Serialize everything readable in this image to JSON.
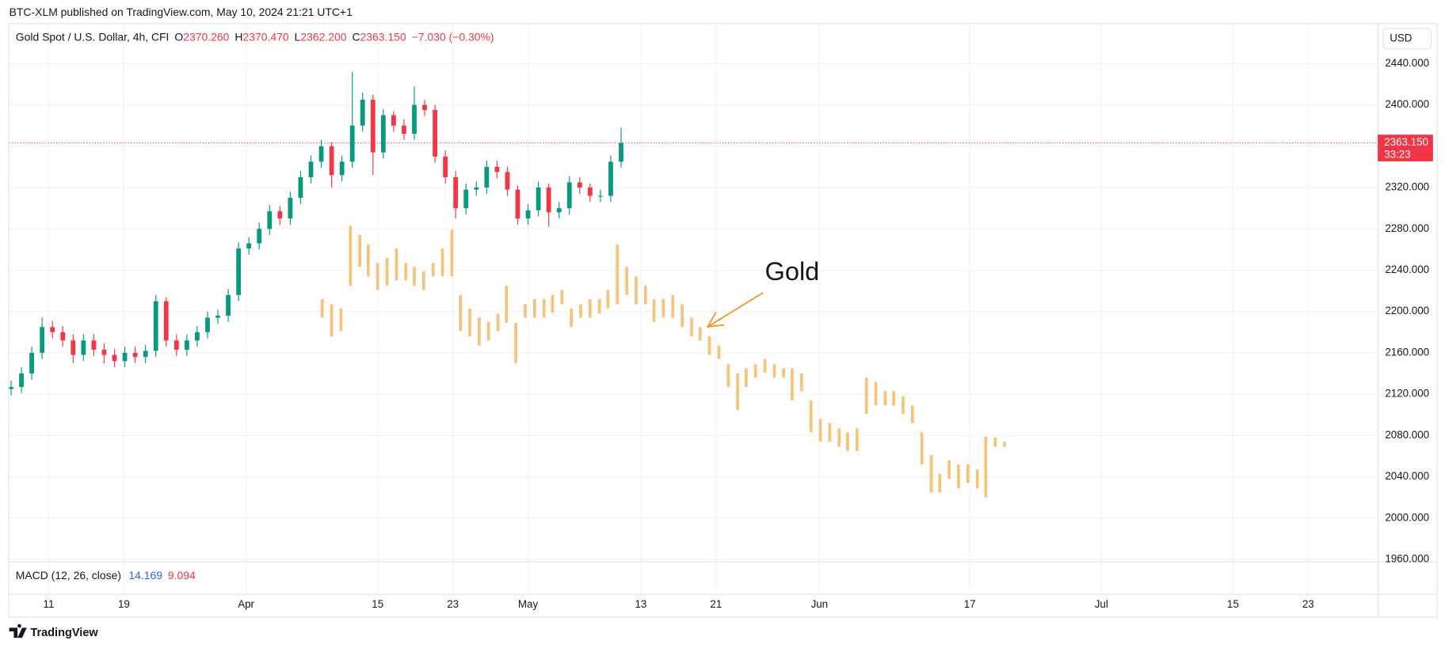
{
  "header": "BTC-XLM published on TradingView.com, May 10, 2024 21:21 UTC+1",
  "legend": {
    "title": "Gold Spot / U.S. Dollar, 4h, CFI",
    "fields": [
      {
        "key": "O",
        "value": "2370.260"
      },
      {
        "key": "H",
        "value": "2370.470"
      },
      {
        "key": "L",
        "value": "2362.200"
      },
      {
        "key": "C",
        "value": "2363.150"
      }
    ],
    "change": "−7.030 (−0.30%)"
  },
  "currency": "USD",
  "indicator": {
    "name": "MACD (12, 26, close)",
    "macd": "14.169",
    "signal": "9.094"
  },
  "footer": "TradingView",
  "chart_data": {
    "type": "candlestick",
    "xlim": [
      6.8,
      152.4
    ],
    "xticks": [
      11,
      19,
      {
        "value": 32,
        "label": "Apr"
      },
      {
        "value": 46,
        "label": "15"
      },
      {
        "value": 54,
        "label": "23"
      },
      {
        "value": 62,
        "label": "May"
      },
      {
        "value": 74,
        "label": "13"
      },
      {
        "value": 82,
        "label": "21"
      },
      {
        "value": 93,
        "label": "Jun"
      },
      {
        "value": 109,
        "label": "17"
      },
      {
        "value": 123,
        "label": "Jul"
      },
      {
        "value": 137,
        "label": "15"
      },
      {
        "value": 145,
        "label": "23"
      }
    ],
    "ylim": [
      1958.1,
      2479.2
    ],
    "yticks": [
      {
        "value": 1960,
        "label": "1960.000"
      },
      {
        "value": 2000,
        "label": "2000.000"
      },
      {
        "value": 2040,
        "label": "2040.000"
      },
      {
        "value": 2080,
        "label": "2080.000"
      },
      {
        "value": 2120,
        "label": "2120.000"
      },
      {
        "value": 2160,
        "label": "2160.000"
      },
      {
        "value": 2200,
        "label": "2200.000"
      },
      {
        "value": 2240,
        "label": "2240.000"
      },
      {
        "value": 2280,
        "label": "2280.000"
      },
      {
        "value": 2320,
        "label": "2320.000"
      },
      {
        "value": 2360,
        "label": "2360.000"
      },
      {
        "value": 2400,
        "label": "2400.000"
      },
      {
        "value": 2440,
        "label": "2440.000"
      }
    ],
    "grid": true,
    "last_price": {
      "value": 2363.15,
      "label": "2363.150",
      "countdown": "33:23",
      "color": "#f23645"
    },
    "series": [
      {
        "up_color": "#089981",
        "down_color": "#f23645",
        "x": [
          7.0,
          8.1,
          9.2,
          10.3,
          11.4,
          12.5,
          13.6,
          14.7,
          15.8,
          16.9,
          18.0,
          19.1,
          20.2,
          21.3,
          22.4,
          23.5,
          24.6,
          25.7,
          26.8,
          27.9,
          29.0,
          30.1,
          31.2,
          32.3,
          33.4,
          34.5,
          35.6,
          36.7,
          37.8,
          38.9,
          40.0,
          41.1,
          42.2,
          43.3,
          44.4,
          45.5,
          46.6,
          47.7,
          48.8,
          49.9,
          51.0,
          52.1,
          53.2,
          54.3,
          55.4,
          56.5,
          57.6,
          58.7,
          59.8,
          60.9,
          62.0,
          63.1,
          64.2,
          65.3,
          66.4,
          67.5,
          68.6,
          69.7,
          70.8,
          71.9
        ],
        "open": [
          2125,
          2127,
          2140,
          2160,
          2185,
          2180,
          2172,
          2158,
          2172,
          2163,
          2158,
          2152,
          2160,
          2156,
          2162,
          2210,
          2172,
          2163,
          2172,
          2180,
          2194,
          2196,
          2216,
          2261,
          2266,
          2280,
          2297,
          2290,
          2310,
          2330,
          2345,
          2360,
          2332,
          2345,
          2380,
          2405,
          2354,
          2390,
          2380,
          2372,
          2400,
          2395,
          2350,
          2330,
          2300,
          2318,
          2320,
          2340,
          2335,
          2318,
          2290,
          2298,
          2320,
          2296,
          2300,
          2325,
          2320,
          2312,
          2312,
          2345
        ],
        "high": [
          2133,
          2146,
          2166,
          2194,
          2191,
          2186,
          2178,
          2178,
          2178,
          2169,
          2164,
          2166,
          2166,
          2168,
          2216,
          2214,
          2178,
          2178,
          2186,
          2200,
          2202,
          2222,
          2267,
          2272,
          2286,
          2303,
          2302,
          2316,
          2336,
          2351,
          2366,
          2364,
          2351,
          2432,
          2412,
          2410,
          2396,
          2394,
          2386,
          2418,
          2405,
          2400,
          2356,
          2336,
          2324,
          2326,
          2346,
          2346,
          2340,
          2322,
          2304,
          2326,
          2324,
          2306,
          2331,
          2330,
          2324,
          2318,
          2351,
          2378
        ],
        "low": [
          2119,
          2121,
          2134,
          2154,
          2174,
          2166,
          2150,
          2152,
          2157,
          2150,
          2146,
          2146,
          2150,
          2150,
          2156,
          2166,
          2157,
          2157,
          2166,
          2174,
          2188,
          2190,
          2210,
          2255,
          2260,
          2274,
          2284,
          2284,
          2304,
          2324,
          2339,
          2320,
          2326,
          2339,
          2374,
          2332,
          2348,
          2374,
          2366,
          2366,
          2389,
          2344,
          2324,
          2290,
          2294,
          2312,
          2314,
          2329,
          2312,
          2284,
          2284,
          2292,
          2282,
          2290,
          2294,
          2314,
          2306,
          2306,
          2306,
          2339
        ],
        "close": [
          2127,
          2140,
          2160,
          2185,
          2180,
          2172,
          2158,
          2172,
          2163,
          2158,
          2152,
          2160,
          2156,
          2162,
          2210,
          2172,
          2163,
          2172,
          2180,
          2194,
          2196,
          2216,
          2261,
          2266,
          2280,
          2297,
          2290,
          2310,
          2330,
          2345,
          2360,
          2332,
          2345,
          2380,
          2405,
          2354,
          2390,
          2380,
          2372,
          2400,
          2395,
          2350,
          2330,
          2300,
          2318,
          2320,
          2340,
          2335,
          2318,
          2290,
          2298,
          2320,
          2296,
          2300,
          2325,
          2320,
          2312,
          2312,
          2345,
          2363.15
        ]
      },
      {
        "name": "Gold",
        "color": "#f9c27a",
        "label_color": "#f7931a",
        "x": [
          40.1,
          41.1,
          42.1,
          43.1,
          44.1,
          45.0,
          46.0,
          47.0,
          48.0,
          49.0,
          49.9,
          50.9,
          51.9,
          52.9,
          53.9,
          54.8,
          55.8,
          56.8,
          57.8,
          58.8,
          59.7,
          60.7,
          61.7,
          62.7,
          63.7,
          64.6,
          65.6,
          66.6,
          67.6,
          68.6,
          69.6,
          70.5,
          71.5,
          72.5,
          73.5,
          74.5,
          75.4,
          76.4,
          77.4,
          78.4,
          79.4,
          80.3,
          81.3,
          82.3,
          83.3,
          84.3,
          85.2,
          86.2,
          87.2,
          88.2,
          89.2,
          90.1,
          91.1,
          92.1,
          93.1,
          94.1,
          95.1,
          96.0,
          97.0,
          98.0,
          99.0,
          100.0,
          100.9,
          101.9,
          102.9,
          103.9,
          104.9,
          105.8,
          106.8,
          107.8,
          108.8,
          109.8,
          110.7,
          111.7,
          112.7
        ],
        "high": [
          2212,
          2207,
          2203,
          2283,
          2274,
          2265,
          2247,
          2252,
          2261,
          2247,
          2243,
          2239,
          2247,
          2261,
          2279,
          2216,
          2203,
          2194,
          2190,
          2198,
          2225,
          2189,
          2207,
          2212,
          2212,
          2216,
          2221,
          2203,
          2207,
          2212,
          2212,
          2221,
          2265,
          2243,
          2234,
          2225,
          2212,
          2212,
          2216,
          2207,
          2194,
          2185,
          2176,
          2167,
          2149,
          2140,
          2145,
          2149,
          2154,
          2149,
          2145,
          2145,
          2140,
          2114,
          2096,
          2092,
          2087,
          2083,
          2087,
          2136,
          2132,
          2123,
          2123,
          2118,
          2109,
          2083,
          2061,
          2043,
          2056,
          2052,
          2052,
          2047,
          2079,
          2078,
          2074
        ],
        "low": [
          2194,
          2176,
          2181,
          2225,
          2243,
          2234,
          2221,
          2225,
          2230,
          2230,
          2225,
          2221,
          2234,
          2234,
          2234,
          2181,
          2176,
          2167,
          2172,
          2181,
          2189,
          2150,
          2194,
          2194,
          2194,
          2199,
          2207,
          2185,
          2194,
          2194,
          2198,
          2203,
          2207,
          2216,
          2207,
          2207,
          2190,
          2194,
          2194,
          2185,
          2176,
          2172,
          2158,
          2154,
          2127,
          2105,
          2127,
          2136,
          2141,
          2136,
          2136,
          2114,
          2123,
          2083,
          2074,
          2074,
          2069,
          2065,
          2065,
          2101,
          2109,
          2109,
          2109,
          2101,
          2092,
          2052,
          2025,
          2025,
          2038,
          2029,
          2034,
          2029,
          2020,
          2069,
          2069
        ]
      }
    ]
  }
}
